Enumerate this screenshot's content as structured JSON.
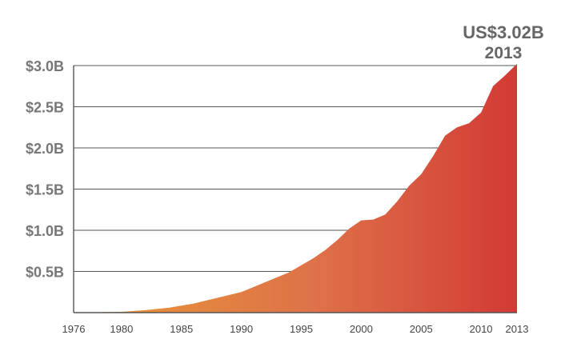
{
  "chart_data": {
    "type": "area",
    "title": "",
    "xlabel": "",
    "ylabel": "",
    "x": [
      1976,
      1978,
      1980,
      1982,
      1984,
      1986,
      1988,
      1990,
      1992,
      1994,
      1996,
      1997,
      1998,
      1999,
      2000,
      2001,
      2002,
      2003,
      2004,
      2005,
      2006,
      2007,
      2008,
      2009,
      2010,
      2011,
      2012,
      2013
    ],
    "values": [
      0.0,
      0.005,
      0.01,
      0.03,
      0.06,
      0.11,
      0.18,
      0.25,
      0.37,
      0.49,
      0.66,
      0.76,
      0.88,
      1.02,
      1.12,
      1.13,
      1.19,
      1.35,
      1.54,
      1.68,
      1.9,
      2.15,
      2.25,
      2.3,
      2.43,
      2.75,
      2.88,
      3.02
    ],
    "xlim": [
      1976,
      2013
    ],
    "ylim": [
      0,
      3.0
    ],
    "x_ticks": [
      "1976",
      "1980",
      "1985",
      "1990",
      "1995",
      "2000",
      "2005",
      "2010",
      "2013"
    ],
    "y_ticks": [
      "$0.5B",
      "$1.0B",
      "$1.5B",
      "$2.0B",
      "$2.5B",
      "$3.0B"
    ],
    "grid": true,
    "colors": {
      "gradient_start": "#E89A38",
      "gradient_mid": "#DE7148",
      "gradient_end": "#D23A35"
    },
    "annotation": {
      "value": "US$3.02B",
      "year": "2013"
    }
  }
}
